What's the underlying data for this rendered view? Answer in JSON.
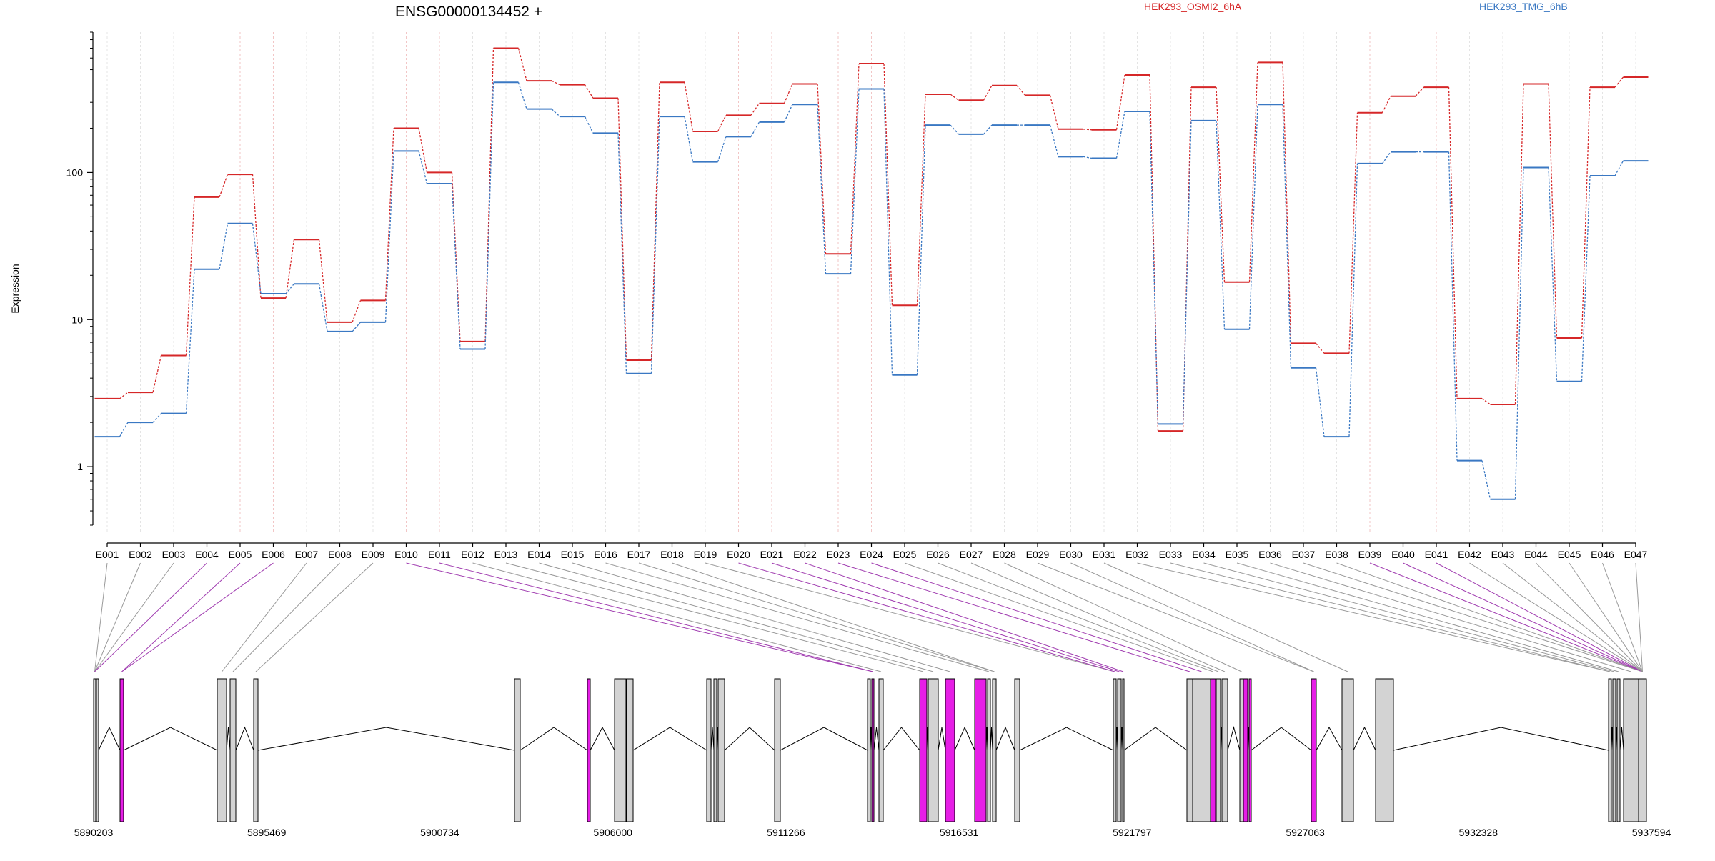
{
  "chart_data": {
    "type": "line",
    "title": "ENSG00000134452 +",
    "ylabel": "Expression",
    "yscale": "log",
    "ylim": [
      0.4,
      900
    ],
    "yticks": [
      "1",
      "10",
      "100"
    ],
    "grid": "dotted vertical at each exon",
    "legend_position": "top",
    "categories": [
      "E001",
      "E002",
      "E003",
      "E004",
      "E005",
      "E006",
      "E007",
      "E008",
      "E009",
      "E010",
      "E011",
      "E012",
      "E013",
      "E014",
      "E015",
      "E016",
      "E017",
      "E018",
      "E019",
      "E020",
      "E021",
      "E022",
      "E023",
      "E024",
      "E025",
      "E026",
      "E027",
      "E028",
      "E029",
      "E030",
      "E031",
      "E032",
      "E033",
      "E034",
      "E035",
      "E036",
      "E037",
      "E038",
      "E039",
      "E040",
      "E041",
      "E042",
      "E043",
      "E044",
      "E045",
      "E046",
      "E047"
    ],
    "highlighted_exons": [
      "E004",
      "E005",
      "E006",
      "E010",
      "E011",
      "E020",
      "E021",
      "E022",
      "E023",
      "E024",
      "E039",
      "E040",
      "E041"
    ],
    "series": [
      {
        "name": "HEK293_OSMI2_6hA",
        "color": "#d62728",
        "values": [
          2.9,
          3.2,
          5.7,
          68,
          97,
          14,
          35,
          9.6,
          13.5,
          200,
          100,
          7.1,
          700,
          420,
          395,
          320,
          5.3,
          410,
          190,
          245,
          295,
          400,
          28,
          550,
          12.5,
          340,
          310,
          390,
          335,
          197,
          195,
          460,
          1.75,
          380,
          18,
          560,
          6.9,
          5.9,
          255,
          330,
          380,
          2.9,
          2.65,
          400,
          7.5,
          380,
          445
        ]
      },
      {
        "name": "HEK293_TMG_6hB",
        "color": "#3a78c3",
        "values": [
          1.6,
          2.0,
          2.3,
          22,
          45,
          15,
          17.5,
          8.3,
          9.6,
          140,
          84,
          6.3,
          410,
          270,
          240,
          185,
          4.3,
          240,
          118,
          175,
          220,
          290,
          20.5,
          370,
          4.2,
          210,
          182,
          210,
          210,
          128,
          125,
          260,
          1.95,
          225,
          8.6,
          290,
          4.7,
          1.6,
          115,
          138,
          138,
          1.1,
          0.6,
          108,
          3.8,
          95,
          120
        ]
      }
    ],
    "exon_track": {
      "start": 5890203,
      "end": 5937594,
      "tick_labels": [
        "5890203",
        "5895469",
        "5900734",
        "5906000",
        "5911266",
        "5916531",
        "5921797",
        "5927063",
        "5932328",
        "5937594"
      ],
      "colors": {
        "normal": "#d3d3d3",
        "highlight": "#e61ee6",
        "link_normal": "#999999",
        "link_highlight": "#a03cb0"
      }
    }
  }
}
